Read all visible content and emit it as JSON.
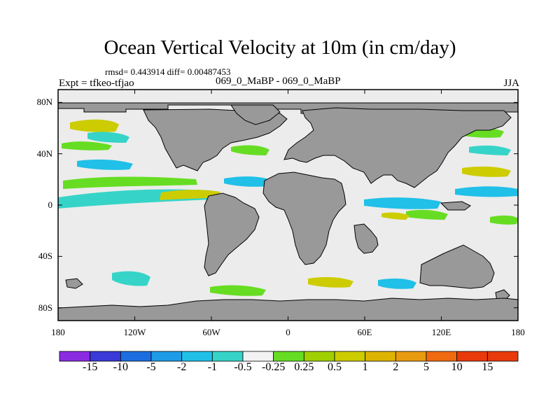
{
  "title": "Ocean Vertical Velocity at 10m (in cm/day)",
  "stats_text": "rmsd= 0.443914 diff= 0.00487453",
  "experiment_text": "Expt = tfkeo-tfjao",
  "runs_text": "069_0_MaBP - 069_0_MaBP",
  "season_text": "JJA",
  "colors": {
    "land": "#999999",
    "ocean_background": "#ececec",
    "coastline": "#000000"
  },
  "map": {
    "projection": "cylindrical-equidistant",
    "lon_range": [
      -180,
      180
    ],
    "lat_range": [
      -90,
      90
    ],
    "lat_ticks": [
      {
        "value": 80,
        "label": "80N"
      },
      {
        "value": 40,
        "label": "40N"
      },
      {
        "value": 0,
        "label": "0"
      },
      {
        "value": -40,
        "label": "40S"
      },
      {
        "value": -80,
        "label": "80S"
      }
    ],
    "lon_ticks": [
      {
        "value": -180,
        "label": "180"
      },
      {
        "value": -120,
        "label": "120W"
      },
      {
        "value": -60,
        "label": "60W"
      },
      {
        "value": 0,
        "label": "0"
      },
      {
        "value": 60,
        "label": "60E"
      },
      {
        "value": 120,
        "label": "120E"
      },
      {
        "value": 180,
        "label": "180"
      }
    ]
  },
  "colorbar": {
    "boxes": [
      {
        "color": "#8a2be2"
      },
      {
        "color": "#3a3ad8"
      },
      {
        "color": "#1c6ee0"
      },
      {
        "color": "#1e9be6"
      },
      {
        "color": "#20c0e8"
      },
      {
        "color": "#36d4c8"
      },
      {
        "color": "#f2f2f2"
      },
      {
        "color": "#66dd22"
      },
      {
        "color": "#a0d000"
      },
      {
        "color": "#cccc00"
      },
      {
        "color": "#dcb400"
      },
      {
        "color": "#e89a10"
      },
      {
        "color": "#f06a10"
      },
      {
        "color": "#e83a0a"
      },
      {
        "color": "#e83a0a"
      }
    ],
    "labels": [
      "-15",
      "-10",
      "-5",
      "-2",
      "-1",
      "-0.5",
      "-0.25",
      "0.25",
      "0.5",
      "1",
      "2",
      "5",
      "10",
      "15"
    ]
  }
}
